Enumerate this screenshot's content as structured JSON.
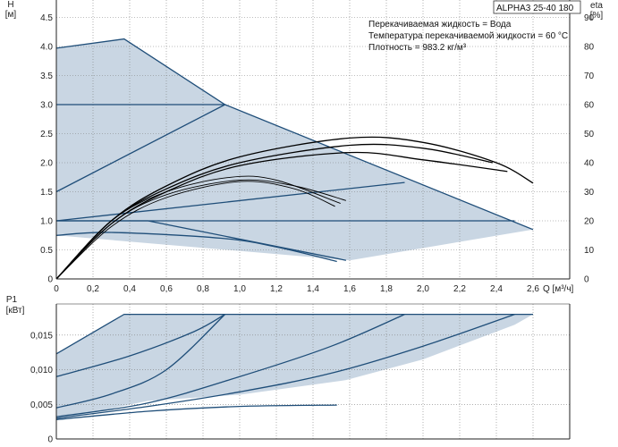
{
  "title": "ALPHA3 25-40 180",
  "info": [
    "Перекачиваемая жидкость = Вода",
    "Температура перекачиваемой жидкости = 60 °C",
    "Плотность = 983.2 кг/м³"
  ],
  "colors": {
    "line": "#1f4e79",
    "fill": "#c9d6e3",
    "eta": "#000000",
    "grid": "#7f7f7f"
  },
  "chart_data": [
    {
      "type": "line",
      "title": "ALPHA3 25-40 180",
      "xlabel": "Q [м³/ч]",
      "ylabel": "H [м]",
      "y2label": "eta [%]",
      "xlim": [
        0,
        2.8
      ],
      "ylim": [
        0,
        4.8
      ],
      "y2lim": [
        0,
        96
      ],
      "xticks": [
        "0",
        "0,2",
        "0,4",
        "0,6",
        "0,8",
        "1,0",
        "1,2",
        "1,4",
        "1,6",
        "1,8",
        "2,0",
        "2,2",
        "2,4",
        "2,6"
      ],
      "yticks": [
        "0",
        "0.5",
        "1.0",
        "1.5",
        "2.0",
        "2.5",
        "3.0",
        "3.5",
        "4.0",
        "4.5"
      ],
      "y2ticks": [
        "0",
        "10",
        "20",
        "30",
        "40",
        "50",
        "60",
        "70",
        "80",
        "90"
      ],
      "operating_area": [
        [
          0,
          3.97
        ],
        [
          0.37,
          4.13
        ],
        [
          0.92,
          3.0
        ],
        [
          2.6,
          0.85
        ],
        [
          1.6,
          0.32
        ],
        [
          0,
          0.75
        ]
      ],
      "head_series": [
        {
          "values": [
            [
              0,
              3.97
            ],
            [
              0.37,
              4.13
            ],
            [
              0.92,
              3.0
            ],
            [
              2.6,
              0.85
            ]
          ]
        },
        {
          "values": [
            [
              0,
              3.0
            ],
            [
              0.92,
              3.0
            ]
          ]
        },
        {
          "values": [
            [
              0,
              1.5
            ],
            [
              0.92,
              3.0
            ]
          ]
        },
        {
          "values": [
            [
              0,
              1.0
            ],
            [
              1.9,
              1.66
            ]
          ]
        },
        {
          "values": [
            [
              0,
              1.0
            ],
            [
              2.5,
              1.0
            ]
          ]
        },
        {
          "values": [
            [
              0,
              0.75
            ],
            [
              0.3,
              0.8
            ],
            [
              0.9,
              0.7
            ],
            [
              1.2,
              0.55
            ],
            [
              1.53,
              0.3
            ]
          ]
        },
        {
          "values": [
            [
              0,
              1.0
            ],
            [
              0.5,
              1.0
            ],
            [
              1.58,
              0.32
            ]
          ]
        }
      ],
      "eta_series": [
        {
          "values": [
            [
              0,
              0
            ],
            [
              0.3,
              20
            ],
            [
              0.6,
              32
            ],
            [
              1.0,
              42
            ],
            [
              1.6,
              48.5
            ],
            [
              2.0,
              47
            ],
            [
              2.4,
              40
            ],
            [
              2.6,
              33
            ]
          ]
        },
        {
          "values": [
            [
              0,
              0
            ],
            [
              0.3,
              20
            ],
            [
              0.6,
              31
            ],
            [
              1.0,
              40
            ],
            [
              1.6,
              46
            ],
            [
              2.0,
              45
            ],
            [
              2.38,
              40
            ]
          ]
        },
        {
          "values": [
            [
              0,
              0
            ],
            [
              0.3,
              19
            ],
            [
              0.6,
              30
            ],
            [
              1.0,
              39
            ],
            [
              1.6,
              43.5
            ],
            [
              2.0,
              41
            ],
            [
              2.46,
              37
            ]
          ]
        },
        {
          "values": [
            [
              0,
              0
            ],
            [
              0.3,
              20
            ],
            [
              0.6,
              30
            ],
            [
              0.95,
              35
            ],
            [
              1.2,
              34
            ],
            [
              1.55,
              26
            ]
          ]
        },
        {
          "values": [
            [
              0,
              0
            ],
            [
              0.3,
              19
            ],
            [
              0.6,
              29
            ],
            [
              1.0,
              34
            ],
            [
              1.3,
              32
            ],
            [
              1.58,
              27
            ]
          ]
        },
        {
          "values": [
            [
              0,
              0
            ],
            [
              0.3,
              18
            ],
            [
              0.6,
              28
            ],
            [
              1.0,
              33.5
            ],
            [
              1.3,
              31
            ],
            [
              1.52,
              25
            ]
          ]
        }
      ]
    },
    {
      "type": "line",
      "ylabel": "P1 [кВт]",
      "xlim": [
        0,
        2.8
      ],
      "ylim": [
        0,
        0.0195
      ],
      "yticks": [
        "0",
        "0,005",
        "0,010",
        "0,015"
      ],
      "operating_area": [
        [
          0,
          0.0123
        ],
        [
          0.37,
          0.018
        ],
        [
          2.6,
          0.018
        ],
        [
          2.5,
          0.0165
        ],
        [
          2.0,
          0.0115
        ],
        [
          1.58,
          0.0085
        ],
        [
          1.0,
          0.0064
        ],
        [
          0.5,
          0.0055
        ],
        [
          0,
          0.0028
        ]
      ],
      "power_series": [
        {
          "values": [
            [
              0,
              0.0123
            ],
            [
              0.37,
              0.018
            ],
            [
              2.6,
              0.018
            ]
          ]
        },
        {
          "values": [
            [
              0,
              0.009
            ],
            [
              0.4,
              0.012
            ],
            [
              0.75,
              0.0155
            ],
            [
              0.92,
              0.018
            ]
          ]
        },
        {
          "values": [
            [
              0,
              0.0045
            ],
            [
              0.3,
              0.0065
            ],
            [
              0.6,
              0.01
            ],
            [
              0.92,
              0.018
            ]
          ]
        },
        {
          "values": [
            [
              0,
              0.0032
            ],
            [
              0.5,
              0.0052
            ],
            [
              1.0,
              0.009
            ],
            [
              1.5,
              0.0134
            ],
            [
              1.9,
              0.018
            ]
          ]
        },
        {
          "values": [
            [
              0,
              0.003
            ],
            [
              0.5,
              0.0047
            ],
            [
              1.0,
              0.0068
            ],
            [
              1.5,
              0.0095
            ],
            [
              2.0,
              0.0134
            ],
            [
              2.5,
              0.018
            ]
          ]
        },
        {
          "values": [
            [
              0,
              0.0028
            ],
            [
              0.5,
              0.004
            ],
            [
              1.0,
              0.0047
            ],
            [
              1.53,
              0.0049
            ]
          ]
        }
      ]
    }
  ]
}
